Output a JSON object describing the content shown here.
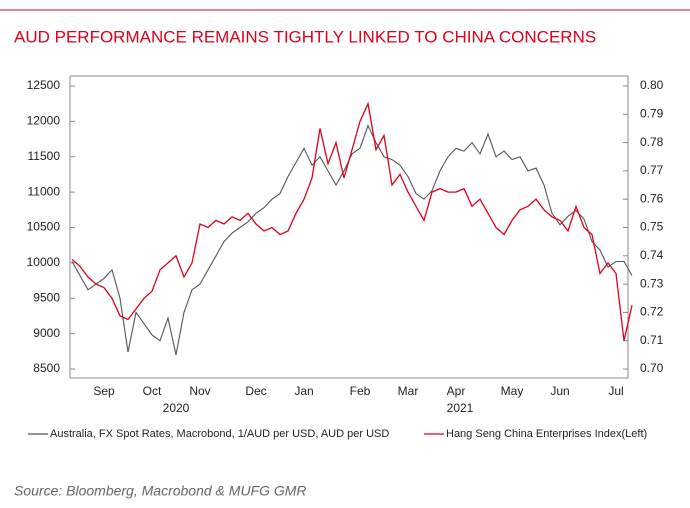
{
  "chart_data": {
    "type": "line",
    "title": "AUD PERFORMANCE REMAINS TIGHTLY LINKED TO CHINA CONCERNS",
    "source": "Source: Bloomberg, Macrobond & MUFG GMR",
    "years": [
      "2020",
      "2021"
    ],
    "categories": [
      null,
      null,
      null,
      null,
      "Sep",
      null,
      null,
      null,
      null,
      null,
      "Oct",
      null,
      null,
      null,
      null,
      null,
      "Nov",
      null,
      null,
      null,
      null,
      null,
      null,
      "Dec",
      null,
      null,
      null,
      null,
      null,
      "Jan",
      null,
      null,
      null,
      null,
      null,
      null,
      "Feb",
      null,
      null,
      null,
      null,
      null,
      "Mar",
      null,
      null,
      null,
      null,
      null,
      "Apr",
      null,
      null,
      null,
      null,
      null,
      null,
      "May",
      null,
      null,
      null,
      null,
      null,
      "Jun",
      null,
      null,
      null,
      null,
      null,
      null,
      "Jul",
      null,
      null
    ],
    "ylim": [
      8500,
      12500
    ],
    "yticks": [
      8500,
      9000,
      9500,
      10000,
      10500,
      11000,
      11500,
      12000,
      12500
    ],
    "y2lim": [
      0.7,
      0.8
    ],
    "y2ticks": [
      {
        "value": 0.7,
        "label": "0.70"
      },
      0.71,
      0.72,
      0.73,
      0.74,
      0.75,
      0.76,
      0.77,
      0.78,
      0.79,
      {
        "value": 0.8,
        "label": "0.80"
      }
    ],
    "series": [
      {
        "name": "Australia, FX Spot Rates, Macrobond, 1/AUD per USD, AUD per USD",
        "color": "#555555",
        "axis": "y2",
        "values": [
          0.738,
          0.733,
          0.728,
          0.73,
          0.732,
          0.735,
          0.725,
          0.706,
          0.72,
          0.716,
          0.712,
          0.71,
          0.718,
          0.705,
          0.72,
          0.728,
          0.73,
          0.735,
          0.74,
          0.745,
          0.748,
          0.75,
          0.752,
          0.755,
          0.757,
          0.76,
          0.762,
          0.768,
          0.773,
          0.778,
          0.772,
          0.775,
          0.77,
          0.765,
          0.77,
          0.776,
          0.778,
          0.786,
          0.78,
          0.775,
          0.774,
          0.772,
          0.768,
          0.762,
          0.76,
          0.763,
          0.77,
          0.775,
          0.778,
          0.777,
          0.78,
          0.776,
          0.783,
          0.775,
          0.777,
          0.774,
          0.775,
          0.77,
          0.771,
          0.765,
          0.755,
          0.751,
          0.754,
          0.756,
          0.753,
          0.745,
          0.742,
          0.736,
          0.738,
          0.738,
          0.733
        ]
      },
      {
        "name": "Hang Seng China Enterprises Index(Left)",
        "color": "#e0001b",
        "values": [
          10050,
          9950,
          9800,
          9700,
          9650,
          9500,
          9250,
          9200,
          9350,
          9500,
          9600,
          9900,
          10000,
          10100,
          9800,
          10000,
          10550,
          10500,
          10600,
          10550,
          10650,
          10600,
          10700,
          10550,
          10450,
          10500,
          10400,
          10450,
          10700,
          10900,
          11200,
          11900,
          11400,
          11700,
          11200,
          11600,
          12000,
          12250,
          11600,
          11800,
          11100,
          11250,
          11000,
          10800,
          10600,
          11000,
          11050,
          11000,
          11000,
          11050,
          10800,
          10900,
          10700,
          10500,
          10400,
          10600,
          10750,
          10800,
          10900,
          10750,
          10650,
          10600,
          10450,
          10800,
          10500,
          10400,
          9850,
          10000,
          9850,
          8900,
          9400
        ]
      }
    ]
  }
}
